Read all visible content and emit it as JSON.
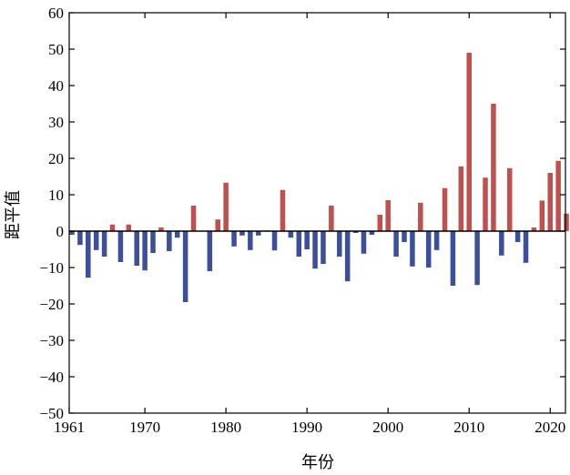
{
  "chart_data": {
    "type": "bar",
    "title": "",
    "xlabel": "年份",
    "ylabel": "距平值",
    "ylim": [
      -50,
      60
    ],
    "xlim": [
      1961,
      2022
    ],
    "yticks": [
      -50,
      -40,
      -30,
      -20,
      -10,
      0,
      10,
      20,
      30,
      40,
      50,
      60
    ],
    "ytick_labels": [
      "−50",
      "−40",
      "−30",
      "−20",
      "−10",
      "0",
      "10",
      "20",
      "30",
      "40",
      "50",
      "60"
    ],
    "xticks": [
      1961,
      1970,
      1980,
      1990,
      2000,
      2010,
      2020
    ],
    "xtick_labels": [
      "1961",
      "1970",
      "1980",
      "1990",
      "2000",
      "2010",
      "2020"
    ],
    "colors": {
      "positive": "#c0504d",
      "negative": "#3c4f9a",
      "axis": "#000000"
    },
    "years": [
      1961,
      1962,
      1963,
      1964,
      1965,
      1966,
      1967,
      1968,
      1969,
      1970,
      1971,
      1972,
      1973,
      1974,
      1975,
      1976,
      1977,
      1978,
      1979,
      1980,
      1981,
      1982,
      1983,
      1984,
      1985,
      1986,
      1987,
      1988,
      1989,
      1990,
      1991,
      1992,
      1993,
      1994,
      1995,
      1996,
      1997,
      1998,
      1999,
      2000,
      2001,
      2002,
      2003,
      2004,
      2005,
      2006,
      2007,
      2008,
      2009,
      2010,
      2011,
      2012,
      2013,
      2014,
      2015,
      2016,
      2017,
      2018,
      2019,
      2020,
      2021,
      2022
    ],
    "values": [
      -1.0,
      -3.8,
      -12.8,
      -5.2,
      -7.0,
      1.8,
      -8.5,
      1.8,
      -9.5,
      -10.8,
      -6.0,
      1.0,
      -5.5,
      -1.8,
      -19.5,
      7.0,
      0,
      -11.0,
      3.2,
      13.3,
      -4.2,
      -1.2,
      -5.2,
      -1.2,
      0.2,
      -5.3,
      11.3,
      -1.8,
      -7.0,
      -5.0,
      -10.3,
      -9.0,
      7.0,
      -7.0,
      -13.8,
      -0.5,
      -6.2,
      -1.0,
      4.5,
      8.5,
      -7.0,
      -3.0,
      -9.7,
      7.8,
      -10.0,
      -5.2,
      11.8,
      -15.0,
      17.8,
      49.0,
      -14.8,
      14.7,
      35.0,
      -6.7,
      17.3,
      -3.0,
      -8.7,
      1.0,
      8.4,
      16.0,
      19.3,
      4.8
    ]
  }
}
